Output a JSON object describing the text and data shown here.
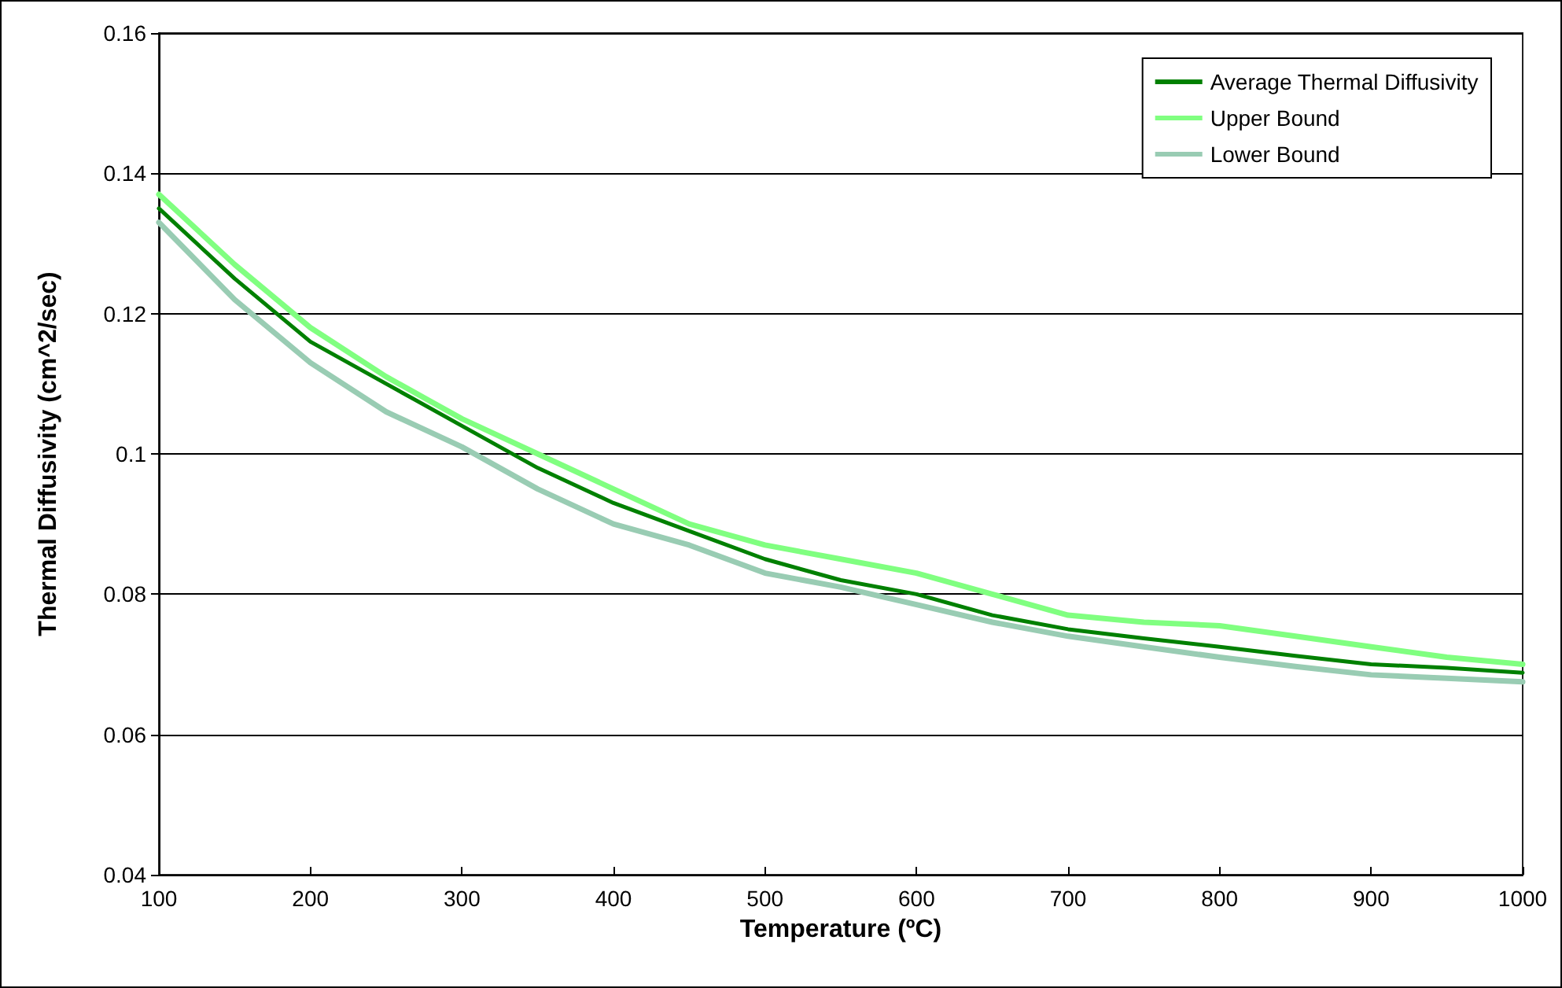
{
  "chart_data": {
    "type": "line",
    "xlabel": "Temperature (ºC)",
    "ylabel": "Thermal Diffusivity (cm^2/sec)",
    "x": [
      100,
      150,
      200,
      250,
      300,
      350,
      400,
      450,
      500,
      550,
      600,
      650,
      700,
      750,
      800,
      850,
      900,
      950,
      1000
    ],
    "series": [
      {
        "name": "Average Thermal Diffusivity",
        "color": "#008000",
        "values": [
          0.135,
          0.125,
          0.116,
          0.11,
          0.104,
          0.098,
          0.093,
          0.089,
          0.085,
          0.082,
          0.08,
          0.077,
          0.075,
          0.0737,
          0.0725,
          0.0712,
          0.07,
          0.0695,
          0.0688
        ]
      },
      {
        "name": "Upper Bound",
        "color": "#80ff80",
        "values": [
          0.137,
          0.127,
          0.118,
          0.111,
          0.105,
          0.1,
          0.095,
          0.09,
          0.087,
          0.085,
          0.083,
          0.08,
          0.077,
          0.076,
          0.0755,
          0.074,
          0.0725,
          0.071,
          0.07
        ]
      },
      {
        "name": "Lower Bound",
        "color": "#99ccb3",
        "values": [
          0.133,
          0.122,
          0.113,
          0.106,
          0.101,
          0.095,
          0.09,
          0.087,
          0.083,
          0.081,
          0.0785,
          0.076,
          0.074,
          0.0725,
          0.071,
          0.0697,
          0.0685,
          0.068,
          0.0675
        ]
      }
    ],
    "xlim": [
      100,
      1000
    ],
    "xticks": [
      100,
      200,
      300,
      400,
      500,
      600,
      700,
      800,
      900,
      1000
    ],
    "ylim": [
      0.04,
      0.16
    ],
    "yticks": [
      0.04,
      0.06,
      0.08,
      0.1,
      0.12,
      0.14,
      0.16
    ],
    "grid": "y",
    "legend": "top right",
    "marker": "none",
    "line_style": "solid"
  }
}
